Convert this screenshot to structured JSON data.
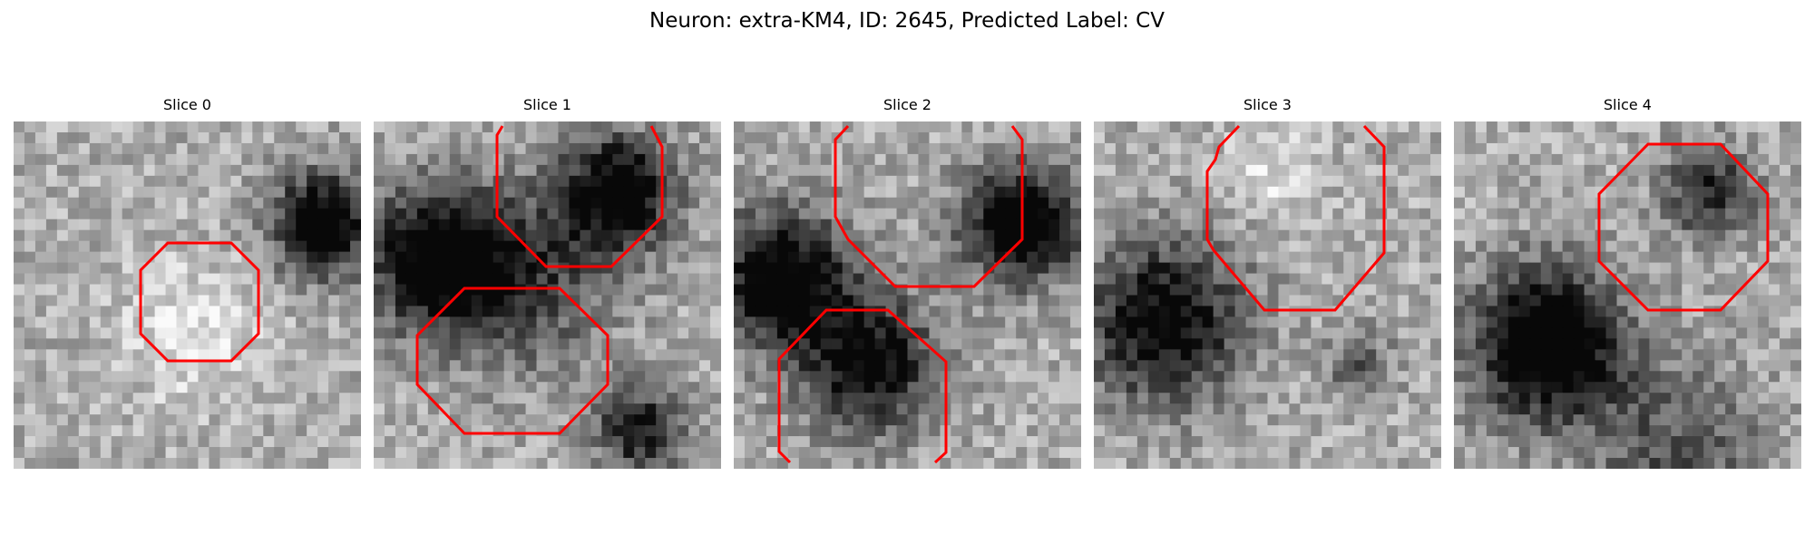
{
  "figure": {
    "title": "Neuron: extra-KM4, ID: 2645, Predicted Label: CV"
  },
  "panels": [
    {
      "title": "Slice 0"
    },
    {
      "title": "Slice 1"
    },
    {
      "title": "Slice 2"
    },
    {
      "title": "Slice 3"
    },
    {
      "title": "Slice 4"
    }
  ],
  "colors": {
    "outline": "#ff0000",
    "colormap": "grayscale"
  }
}
